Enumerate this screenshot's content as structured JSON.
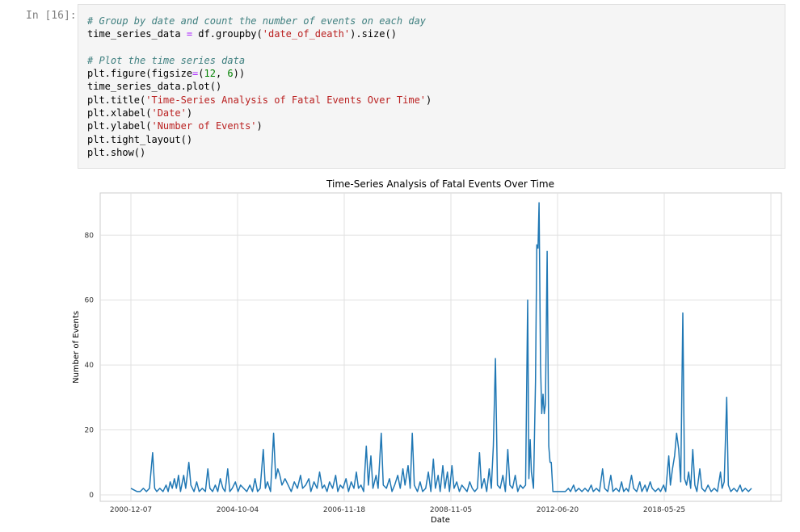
{
  "cell": {
    "prompt": "In [16]:",
    "code": {
      "line1_comment": "# Group by date and count the number of events on each day",
      "line2_var": "time_series_data",
      "line2_eq": " = ",
      "line2_call": "df.groupby(",
      "line2_arg": "'date_of_death'",
      "line2_tail": ").size()",
      "line4_comment": "# Plot the time series data",
      "line5_a": "plt.figure(figsize",
      "line5_eq": "=",
      "line5_b": "(",
      "line5_n1": "12",
      "line5_sep": ", ",
      "line5_n2": "6",
      "line5_c": "))",
      "line6": "time_series_data.plot()",
      "line7_a": "plt.title(",
      "line7_arg": "'Time-Series Analysis of Fatal Events Over Time'",
      "line7_b": ")",
      "line8_a": "plt.xlabel(",
      "line8_arg": "'Date'",
      "line8_b": ")",
      "line9_a": "plt.ylabel(",
      "line9_arg": "'Number of Events'",
      "line9_b": ")",
      "line10": "plt.tight_layout()",
      "line11": "plt.show()"
    }
  },
  "chart_data": {
    "type": "line",
    "title": "Time-Series Analysis of Fatal Events Over Time",
    "xlabel": "Date",
    "ylabel": "Number of Events",
    "grid": true,
    "legend": false,
    "color": "#1f77b4",
    "ylim": [
      -2,
      93
    ],
    "x_ticks": [
      "2000-12-07",
      "2004-10-04",
      "2006-11-18",
      "2008-11-05",
      "2012-06-20",
      "2018-05-25"
    ],
    "y_ticks": [
      0,
      20,
      40,
      60,
      80
    ],
    "series": [
      {
        "x_index_range": [
          0,
          3000
        ],
        "points": [
          [
            0,
            2
          ],
          [
            30,
            1
          ],
          [
            45,
            1
          ],
          [
            60,
            2
          ],
          [
            75,
            1
          ],
          [
            90,
            2
          ],
          [
            105,
            13
          ],
          [
            115,
            2
          ],
          [
            125,
            1
          ],
          [
            140,
            2
          ],
          [
            155,
            1
          ],
          [
            170,
            3
          ],
          [
            180,
            1
          ],
          [
            190,
            4
          ],
          [
            200,
            2
          ],
          [
            210,
            5
          ],
          [
            220,
            2
          ],
          [
            230,
            6
          ],
          [
            240,
            1
          ],
          [
            255,
            6
          ],
          [
            265,
            2
          ],
          [
            280,
            10
          ],
          [
            290,
            3
          ],
          [
            305,
            1
          ],
          [
            318,
            4
          ],
          [
            330,
            1
          ],
          [
            345,
            2
          ],
          [
            360,
            1
          ],
          [
            372,
            8
          ],
          [
            382,
            2
          ],
          [
            395,
            1
          ],
          [
            408,
            3
          ],
          [
            420,
            1
          ],
          [
            432,
            5
          ],
          [
            445,
            2
          ],
          [
            455,
            1
          ],
          [
            468,
            8
          ],
          [
            478,
            1
          ],
          [
            490,
            2
          ],
          [
            505,
            4
          ],
          [
            518,
            1
          ],
          [
            530,
            3
          ],
          [
            545,
            2
          ],
          [
            560,
            1
          ],
          [
            575,
            3
          ],
          [
            588,
            1
          ],
          [
            600,
            5
          ],
          [
            612,
            1
          ],
          [
            625,
            2
          ],
          [
            640,
            14
          ],
          [
            650,
            2
          ],
          [
            660,
            4
          ],
          [
            675,
            1
          ],
          [
            690,
            19
          ],
          [
            700,
            5
          ],
          [
            710,
            8
          ],
          [
            720,
            6
          ],
          [
            730,
            3
          ],
          [
            745,
            5
          ],
          [
            760,
            3
          ],
          [
            775,
            1
          ],
          [
            790,
            4
          ],
          [
            805,
            2
          ],
          [
            820,
            6
          ],
          [
            830,
            2
          ],
          [
            845,
            3
          ],
          [
            860,
            5
          ],
          [
            870,
            1
          ],
          [
            885,
            4
          ],
          [
            900,
            2
          ],
          [
            912,
            7
          ],
          [
            925,
            2
          ],
          [
            935,
            3
          ],
          [
            948,
            1
          ],
          [
            960,
            4
          ],
          [
            975,
            2
          ],
          [
            990,
            6
          ],
          [
            1000,
            1
          ],
          [
            1012,
            3
          ],
          [
            1025,
            2
          ],
          [
            1040,
            5
          ],
          [
            1052,
            1
          ],
          [
            1065,
            4
          ],
          [
            1078,
            2
          ],
          [
            1090,
            7
          ],
          [
            1100,
            2
          ],
          [
            1112,
            3
          ],
          [
            1125,
            1
          ],
          [
            1138,
            15
          ],
          [
            1148,
            3
          ],
          [
            1160,
            12
          ],
          [
            1170,
            2
          ],
          [
            1185,
            6
          ],
          [
            1195,
            2
          ],
          [
            1210,
            19
          ],
          [
            1220,
            3
          ],
          [
            1235,
            2
          ],
          [
            1250,
            5
          ],
          [
            1262,
            1
          ],
          [
            1275,
            3
          ],
          [
            1290,
            6
          ],
          [
            1302,
            2
          ],
          [
            1315,
            8
          ],
          [
            1325,
            3
          ],
          [
            1340,
            9
          ],
          [
            1350,
            2
          ],
          [
            1360,
            19
          ],
          [
            1370,
            3
          ],
          [
            1385,
            1
          ],
          [
            1398,
            4
          ],
          [
            1410,
            1
          ],
          [
            1425,
            2
          ],
          [
            1438,
            7
          ],
          [
            1450,
            1
          ],
          [
            1462,
            11
          ],
          [
            1472,
            2
          ],
          [
            1485,
            6
          ],
          [
            1495,
            1
          ],
          [
            1508,
            9
          ],
          [
            1518,
            2
          ],
          [
            1530,
            7
          ],
          [
            1540,
            1
          ],
          [
            1552,
            9
          ],
          [
            1562,
            2
          ],
          [
            1575,
            4
          ],
          [
            1588,
            1
          ],
          [
            1600,
            3
          ],
          [
            1612,
            2
          ],
          [
            1625,
            1
          ],
          [
            1638,
            4
          ],
          [
            1650,
            2
          ],
          [
            1662,
            1
          ],
          [
            1675,
            2
          ],
          [
            1685,
            13
          ],
          [
            1695,
            2
          ],
          [
            1708,
            5
          ],
          [
            1720,
            1
          ],
          [
            1732,
            8
          ],
          [
            1742,
            2
          ],
          [
            1752,
            15
          ],
          [
            1762,
            42
          ],
          [
            1772,
            3
          ],
          [
            1785,
            2
          ],
          [
            1798,
            6
          ],
          [
            1810,
            1
          ],
          [
            1822,
            14
          ],
          [
            1832,
            3
          ],
          [
            1845,
            2
          ],
          [
            1858,
            6
          ],
          [
            1870,
            1
          ],
          [
            1882,
            3
          ],
          [
            1895,
            2
          ],
          [
            1908,
            3
          ],
          [
            1918,
            60
          ],
          [
            1924,
            5
          ],
          [
            1930,
            17
          ],
          [
            1936,
            7
          ],
          [
            1946,
            2
          ],
          [
            1956,
            35
          ],
          [
            1962,
            77
          ],
          [
            1968,
            76
          ],
          [
            1973,
            90
          ],
          [
            1980,
            40
          ],
          [
            1986,
            25
          ],
          [
            1992,
            31
          ],
          [
            1998,
            25
          ],
          [
            2004,
            28
          ],
          [
            2012,
            75
          ],
          [
            2020,
            15
          ],
          [
            2026,
            10
          ],
          [
            2032,
            10
          ],
          [
            2040,
            1
          ],
          [
            2060,
            1
          ],
          [
            2080,
            1
          ],
          [
            2100,
            1
          ],
          [
            2115,
            2
          ],
          [
            2125,
            1
          ],
          [
            2140,
            3
          ],
          [
            2150,
            1
          ],
          [
            2165,
            2
          ],
          [
            2180,
            1
          ],
          [
            2195,
            2
          ],
          [
            2210,
            1
          ],
          [
            2225,
            3
          ],
          [
            2235,
            1
          ],
          [
            2250,
            2
          ],
          [
            2265,
            1
          ],
          [
            2280,
            8
          ],
          [
            2290,
            2
          ],
          [
            2305,
            1
          ],
          [
            2320,
            6
          ],
          [
            2330,
            1
          ],
          [
            2345,
            2
          ],
          [
            2360,
            1
          ],
          [
            2372,
            4
          ],
          [
            2382,
            1
          ],
          [
            2395,
            2
          ],
          [
            2405,
            1
          ],
          [
            2420,
            6
          ],
          [
            2430,
            2
          ],
          [
            2445,
            1
          ],
          [
            2460,
            4
          ],
          [
            2470,
            1
          ],
          [
            2485,
            3
          ],
          [
            2495,
            1
          ],
          [
            2510,
            4
          ],
          [
            2520,
            2
          ],
          [
            2535,
            1
          ],
          [
            2550,
            2
          ],
          [
            2560,
            1
          ],
          [
            2575,
            3
          ],
          [
            2585,
            1
          ],
          [
            2600,
            12
          ],
          [
            2608,
            3
          ],
          [
            2618,
            8
          ],
          [
            2628,
            12
          ],
          [
            2638,
            19
          ],
          [
            2648,
            14
          ],
          [
            2658,
            4
          ],
          [
            2668,
            56
          ],
          [
            2676,
            5
          ],
          [
            2686,
            3
          ],
          [
            2696,
            7
          ],
          [
            2706,
            2
          ],
          [
            2716,
            14
          ],
          [
            2726,
            3
          ],
          [
            2736,
            1
          ],
          [
            2750,
            8
          ],
          [
            2760,
            2
          ],
          [
            2775,
            1
          ],
          [
            2790,
            3
          ],
          [
            2805,
            1
          ],
          [
            2820,
            2
          ],
          [
            2835,
            1
          ],
          [
            2850,
            7
          ],
          [
            2858,
            2
          ],
          [
            2868,
            4
          ],
          [
            2880,
            30
          ],
          [
            2888,
            3
          ],
          [
            2900,
            1
          ],
          [
            2915,
            2
          ],
          [
            2930,
            1
          ],
          [
            2945,
            3
          ],
          [
            2955,
            1
          ],
          [
            2970,
            2
          ],
          [
            2985,
            1
          ],
          [
            3000,
            2
          ]
        ]
      }
    ]
  }
}
